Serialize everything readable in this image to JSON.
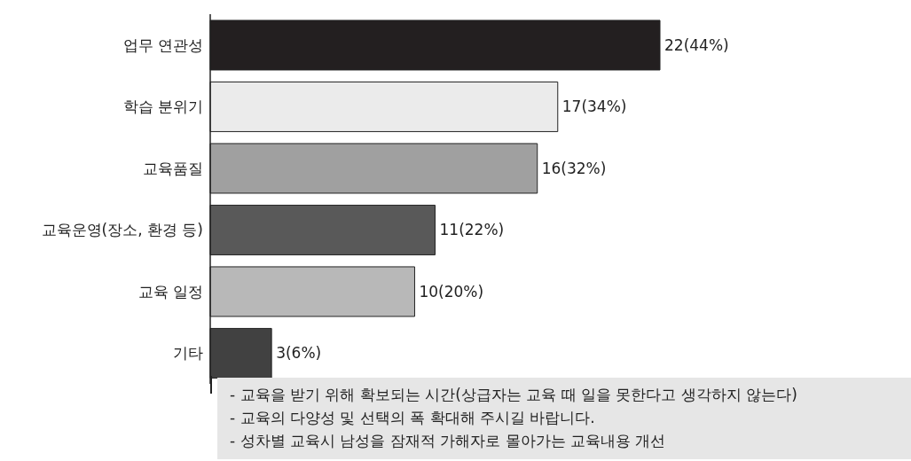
{
  "chart_data": {
    "type": "bar",
    "orientation": "horizontal",
    "categories": [
      "업무 연관성",
      "학습 분위기",
      "교육품질",
      "교육운영(장소, 환경 등)",
      "교육 일정",
      "기타"
    ],
    "values": [
      22,
      17,
      16,
      11,
      10,
      3
    ],
    "value_labels": [
      "22(44%)",
      "17(34%)",
      "16(32%)",
      "11(22%)",
      "10(20%)",
      "3(6%)"
    ],
    "colors": [
      "#231f20",
      "#ebebeb",
      "#a0a0a0",
      "#595959",
      "#b8b8b8",
      "#414141"
    ],
    "annotations": [
      "- 교육을 받기 위해 확보되는 시간(상급자는 교육 때 일을 못한다고 생각하지 않는다)",
      "- 교육의 다양성 및 선택의 폭 확대해 주시길 바랍니다.",
      "- 성차별 교육시 남성을 잠재적 가해자로 몰아가는 교육내용 개선"
    ]
  }
}
